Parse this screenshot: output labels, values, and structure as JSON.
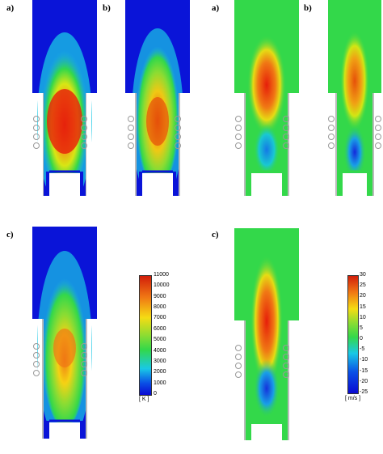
{
  "panel_labels": {
    "temp_a": "a)",
    "temp_b": "b)",
    "temp_c": "c)",
    "vel_a": "a)",
    "vel_b": "b)",
    "vel_c": "c)"
  },
  "temperature_colorbar": {
    "unit": "[ K ]",
    "ticks": [
      "11000",
      "10000",
      "9000",
      "8000",
      "7000",
      "6000",
      "5000",
      "4000",
      "3000",
      "2000",
      "1000",
      "0"
    ],
    "min": 0,
    "max": 11000
  },
  "velocity_colorbar": {
    "unit": "[ m/s ]",
    "ticks": [
      "30",
      "25",
      "20",
      "15",
      "10",
      "5",
      "0",
      "-5",
      "-10",
      "-15",
      "-20",
      "-25"
    ],
    "min": -25,
    "max": 30
  },
  "colors": {
    "blue": "#0a14d8",
    "green": "#33d84a",
    "red": "#e61e0a",
    "yellow": "#f5e614",
    "cyan": "#19c8e6"
  },
  "caption": ""
}
